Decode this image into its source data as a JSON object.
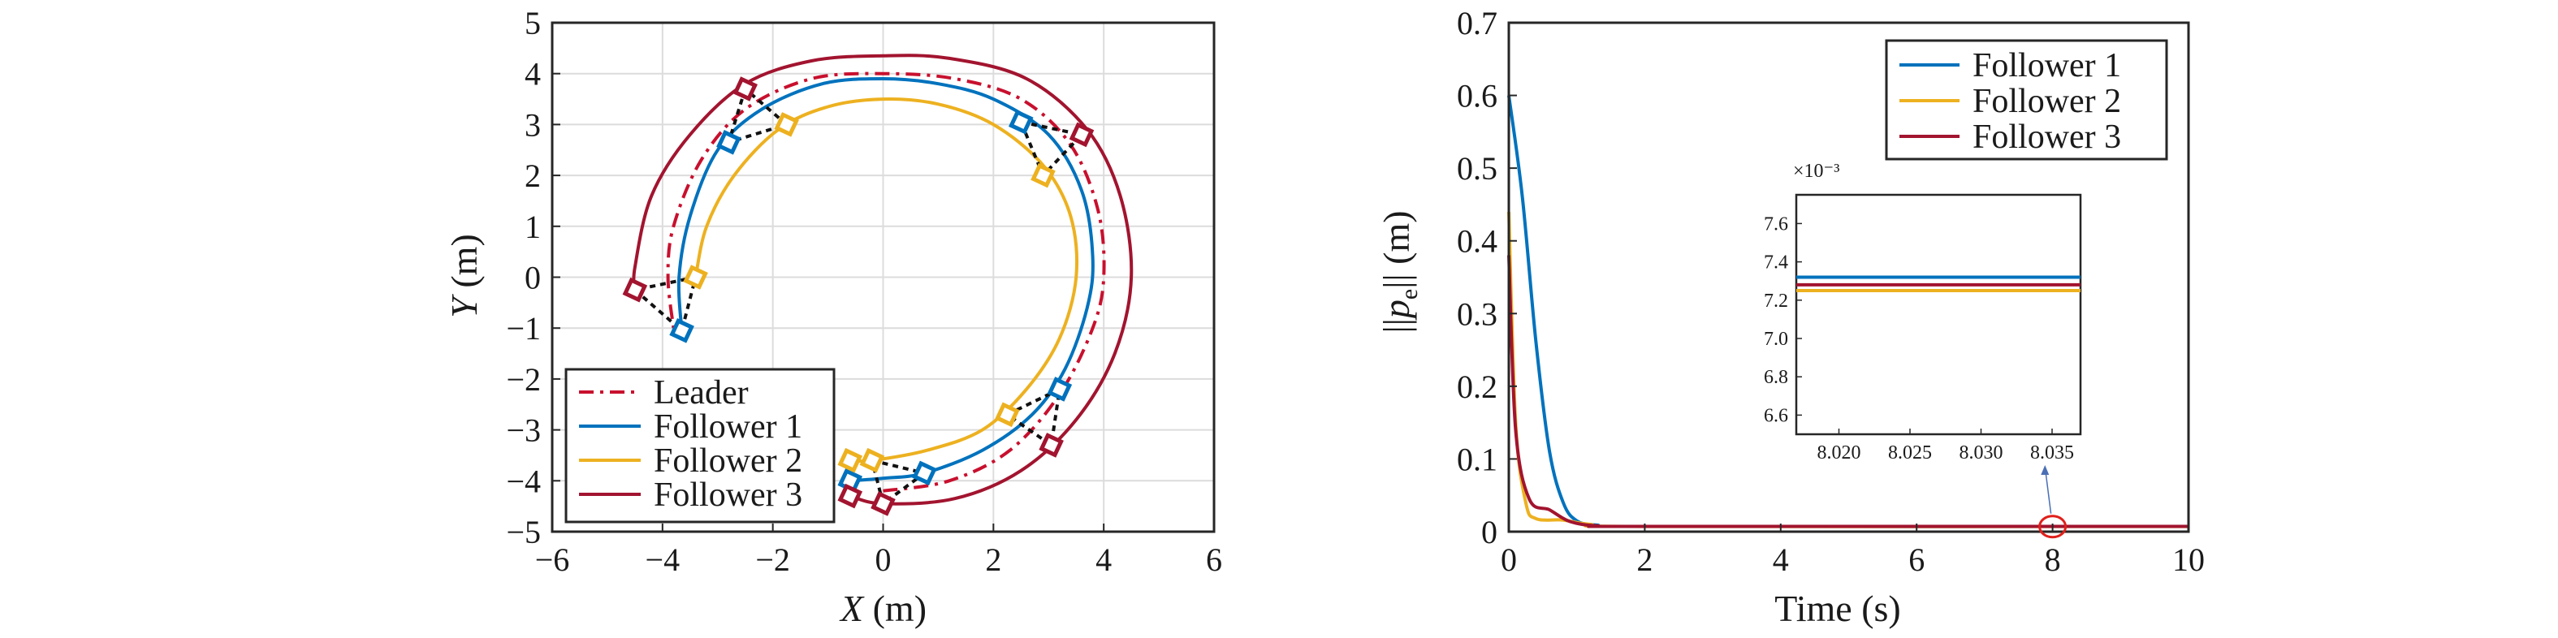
{
  "chart_data": [
    {
      "type": "line",
      "xlabel": "X (m)",
      "ylabel": "Y (m)",
      "xlim": [
        -6,
        6
      ],
      "ylim": [
        -5,
        5
      ],
      "xticks": [
        "−6",
        "−4",
        "−2",
        "0",
        "2",
        "4",
        "6"
      ],
      "yticks": [
        "−5",
        "−4",
        "−3",
        "−2",
        "−1",
        "0",
        "1",
        "2",
        "3",
        "4",
        "5"
      ],
      "grid": true,
      "legend_position": "bottom-left",
      "series": [
        {
          "name": "Leader",
          "color": "#c8102e",
          "dash": "dash-dot",
          "points": [
            [
              0.0,
              -4.2
            ],
            [
              1.2,
              -4.0
            ],
            [
              2.3,
              -3.4
            ],
            [
              3.2,
              -2.3
            ],
            [
              3.8,
              -1.0
            ],
            [
              4.0,
              0.0
            ],
            [
              3.9,
              1.3
            ],
            [
              3.4,
              2.6
            ],
            [
              2.5,
              3.5
            ],
            [
              1.3,
              3.9
            ],
            [
              0.0,
              4.0
            ],
            [
              -1.3,
              3.9
            ],
            [
              -2.5,
              3.3
            ],
            [
              -3.3,
              2.3
            ],
            [
              -3.8,
              1.0
            ],
            [
              -3.9,
              0.0
            ],
            [
              -3.8,
              -1.0
            ]
          ]
        },
        {
          "name": "Follower 1",
          "color": "#0072bd",
          "points": [
            [
              -0.6,
              -4.0
            ],
            [
              0.0,
              -3.95
            ],
            [
              0.75,
              -3.85
            ],
            [
              1.8,
              -3.4
            ],
            [
              2.7,
              -2.7
            ],
            [
              3.3,
              -1.8
            ],
            [
              3.7,
              -0.6
            ],
            [
              3.8,
              0.4
            ],
            [
              3.6,
              1.7
            ],
            [
              3.0,
              2.8
            ],
            [
              2.0,
              3.5
            ],
            [
              1.0,
              3.8
            ],
            [
              0.0,
              3.9
            ],
            [
              -1.1,
              3.8
            ],
            [
              -2.2,
              3.3
            ],
            [
              -3.0,
              2.5
            ],
            [
              -3.5,
              1.2
            ],
            [
              -3.7,
              0.0
            ],
            [
              -3.65,
              -1.05
            ]
          ]
        },
        {
          "name": "Follower 2",
          "color": "#edb120",
          "points": [
            [
              -0.6,
              -3.6
            ],
            [
              -0.2,
              -3.6
            ],
            [
              0.8,
              -3.4
            ],
            [
              1.8,
              -3.0
            ],
            [
              2.6,
              -2.2
            ],
            [
              3.2,
              -1.2
            ],
            [
              3.5,
              0.0
            ],
            [
              3.4,
              1.2
            ],
            [
              2.9,
              2.2
            ],
            [
              2.0,
              3.0
            ],
            [
              1.0,
              3.4
            ],
            [
              0.0,
              3.5
            ],
            [
              -1.0,
              3.35
            ],
            [
              -1.9,
              2.9
            ],
            [
              -2.7,
              2.0
            ],
            [
              -3.2,
              1.0
            ],
            [
              -3.4,
              0.0
            ]
          ]
        },
        {
          "name": "Follower 3",
          "color": "#a2142f",
          "points": [
            [
              -0.6,
              -4.3
            ],
            [
              0.0,
              -4.45
            ],
            [
              1.3,
              -4.35
            ],
            [
              2.5,
              -3.8
            ],
            [
              3.5,
              -2.8
            ],
            [
              4.2,
              -1.5
            ],
            [
              4.5,
              0.0
            ],
            [
              4.3,
              1.6
            ],
            [
              3.7,
              2.9
            ],
            [
              2.6,
              3.9
            ],
            [
              1.2,
              4.3
            ],
            [
              0.0,
              4.35
            ],
            [
              -1.3,
              4.25
            ],
            [
              -2.5,
              3.8
            ],
            [
              -3.5,
              2.8
            ],
            [
              -4.2,
              1.6
            ],
            [
              -4.5,
              0.2
            ],
            [
              -4.5,
              -0.25
            ]
          ]
        }
      ],
      "markers": [
        {
          "series": "Follower 1",
          "x": 2.5,
          "y": 3.05
        },
        {
          "series": "Follower 1",
          "x": -2.8,
          "y": 2.65
        },
        {
          "series": "Follower 1",
          "x": -3.65,
          "y": -1.05
        },
        {
          "series": "Follower 1",
          "x": 3.2,
          "y": -2.2
        },
        {
          "series": "Follower 1",
          "x": 0.75,
          "y": -3.85
        },
        {
          "series": "Follower 1",
          "x": -0.6,
          "y": -4.0
        },
        {
          "series": "Follower 2",
          "x": -1.75,
          "y": 3.0
        },
        {
          "series": "Follower 2",
          "x": 2.9,
          "y": 2.0
        },
        {
          "series": "Follower 2",
          "x": -3.4,
          "y": 0.0
        },
        {
          "series": "Follower 2",
          "x": 2.25,
          "y": -2.7
        },
        {
          "series": "Follower 2",
          "x": -0.2,
          "y": -3.6
        },
        {
          "series": "Follower 2",
          "x": -0.6,
          "y": -3.6
        },
        {
          "series": "Follower 3",
          "x": -2.5,
          "y": 3.7
        },
        {
          "series": "Follower 3",
          "x": 3.6,
          "y": 2.8
        },
        {
          "series": "Follower 3",
          "x": -4.5,
          "y": -0.25
        },
        {
          "series": "Follower 3",
          "x": 3.05,
          "y": -3.3
        },
        {
          "series": "Follower 3",
          "x": 0.0,
          "y": -4.45
        },
        {
          "series": "Follower 3",
          "x": -0.6,
          "y": -4.3
        }
      ],
      "formation_links": [
        [
          [
            -2.5,
            3.7
          ],
          [
            -2.8,
            2.65
          ],
          [
            -1.75,
            3.0
          ],
          [
            -2.5,
            3.7
          ]
        ],
        [
          [
            2.5,
            3.05
          ],
          [
            3.6,
            2.8
          ],
          [
            2.9,
            2.0
          ],
          [
            2.5,
            3.05
          ]
        ],
        [
          [
            -4.5,
            -0.25
          ],
          [
            -3.65,
            -1.05
          ],
          [
            -3.4,
            0.0
          ],
          [
            -4.5,
            -0.25
          ]
        ],
        [
          [
            2.25,
            -2.7
          ],
          [
            3.2,
            -2.2
          ],
          [
            3.05,
            -3.3
          ],
          [
            2.25,
            -2.7
          ]
        ],
        [
          [
            -0.2,
            -3.6
          ],
          [
            0.75,
            -3.85
          ],
          [
            0.0,
            -4.45
          ],
          [
            -0.2,
            -3.6
          ]
        ]
      ]
    },
    {
      "type": "line",
      "xlabel": "Time (s)",
      "ylabel": "||pe|| (m)",
      "xlim": [
        0,
        10
      ],
      "ylim": [
        0,
        0.7
      ],
      "xticks": [
        "0",
        "2",
        "4",
        "6",
        "8",
        "10"
      ],
      "yticks": [
        "0",
        "0.1",
        "0.2",
        "0.3",
        "0.4",
        "0.5",
        "0.6",
        "0.7"
      ],
      "grid": false,
      "legend_position": "top-right",
      "series": [
        {
          "name": "Follower 1",
          "color": "#0072bd",
          "points": [
            [
              0,
              0.6
            ],
            [
              0.2,
              0.46
            ],
            [
              0.4,
              0.26
            ],
            [
              0.6,
              0.11
            ],
            [
              0.8,
              0.04
            ],
            [
              1.0,
              0.015
            ],
            [
              1.3,
              0.009
            ],
            [
              2,
              0.0073
            ],
            [
              10,
              0.0073
            ]
          ]
        },
        {
          "name": "Follower 2",
          "color": "#edb120",
          "points": [
            [
              0,
              0.44
            ],
            [
              0.1,
              0.15
            ],
            [
              0.25,
              0.04
            ],
            [
              0.4,
              0.018
            ],
            [
              0.8,
              0.016
            ],
            [
              1.2,
              0.01
            ],
            [
              2,
              0.0072
            ],
            [
              10,
              0.0072
            ]
          ]
        },
        {
          "name": "Follower 3",
          "color": "#a2142f",
          "points": [
            [
              0,
              0.38
            ],
            [
              0.1,
              0.14
            ],
            [
              0.3,
              0.045
            ],
            [
              0.6,
              0.03
            ],
            [
              0.9,
              0.014
            ],
            [
              1.3,
              0.008
            ],
            [
              2,
              0.0073
            ],
            [
              10,
              0.0073
            ]
          ]
        }
      ],
      "highlight": {
        "x": 8.0,
        "y": 0.007
      },
      "inset": {
        "exponent_label": "×10⁻³",
        "xlim": [
          8.017,
          8.037
        ],
        "ylim": [
          6.5,
          7.75
        ],
        "xticks": [
          "8.020",
          "8.025",
          "8.030",
          "8.035"
        ],
        "yticks": [
          "6.6",
          "6.8",
          "7.0",
          "7.2",
          "7.4",
          "7.6"
        ],
        "values": [
          {
            "series": "Follower 1",
            "y": 7.32
          },
          {
            "series": "Follower 2",
            "y": 7.25
          },
          {
            "series": "Follower 3",
            "y": 7.28
          }
        ]
      }
    }
  ]
}
